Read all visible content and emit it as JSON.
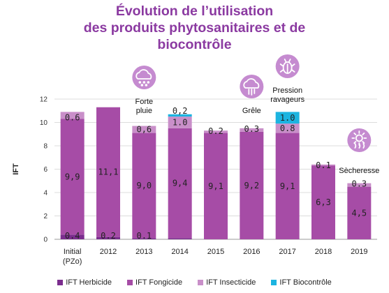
{
  "title_lines": [
    "Évolution de l’utilisation",
    "des produits phytosanitaires et de",
    "biocontrôle"
  ],
  "colors": {
    "title": "#8B3AA1",
    "herbicide": "#7B2D8E",
    "fongicide": "#A64CA6",
    "insecticide": "#C98FC9",
    "biocontrole": "#1CB4E0",
    "icon_circle": "#C58BD0"
  },
  "chart_data": {
    "type": "bar",
    "stacked": true,
    "ylabel": "IFT",
    "ylim": [
      0,
      12
    ],
    "yticks": [
      "0",
      "2",
      "4",
      "6",
      "8",
      "10",
      "12"
    ],
    "grid": true,
    "categories": [
      "Initial (PZo)",
      "2012",
      "2013",
      "2014",
      "2015",
      "2016",
      "2017",
      "2018",
      "2019"
    ],
    "series": [
      {
        "name": "IFT Herbicide",
        "values": [
          0.4,
          0.2,
          0.1,
          0.1,
          0,
          0,
          0,
          0,
          0
        ],
        "labels": [
          "0.4",
          "0.2",
          "0.1",
          "",
          "",
          "",
          "",
          "",
          ""
        ]
      },
      {
        "name": "IFT Fongicide",
        "values": [
          9.9,
          11.1,
          9.0,
          9.4,
          9.1,
          9.2,
          9.1,
          6.3,
          4.5
        ],
        "labels": [
          "9,9",
          "11,1",
          "9,0",
          "9,4",
          "9,1",
          "9,2",
          "9,1",
          "6,3",
          "4,5"
        ]
      },
      {
        "name": "IFT Insecticide",
        "values": [
          0.6,
          0,
          0.6,
          1.0,
          0.2,
          0.3,
          0.8,
          0.1,
          0.3
        ],
        "labels": [
          "0.6",
          "",
          "0,6",
          "1.0",
          "0.2",
          "0.3",
          "0.8",
          "0.1",
          "0.3"
        ]
      },
      {
        "name": "IFT Biocontrôle",
        "values": [
          0,
          0,
          0,
          0.2,
          0,
          0,
          1.0,
          0,
          0
        ],
        "labels": [
          "",
          "",
          "",
          "0,2",
          "",
          "",
          "1.0",
          "",
          ""
        ]
      }
    ],
    "label_positions": {
      "0": {
        "1": "mid",
        "2": "top-inside",
        "0": "bottom"
      },
      "1": {
        "1": "mid",
        "0": "bottom"
      }
    },
    "annotations": [
      {
        "category": "2013",
        "icon": "rain-cloud-icon",
        "text": "Forte\npluie"
      },
      {
        "category": "2016",
        "icon": "hail-cloud-icon",
        "text": "Grêle"
      },
      {
        "category": "2017",
        "icon": "bug-icon",
        "text": "Pression\nravageurs"
      },
      {
        "category": "2019",
        "icon": "sun-heat-icon",
        "text": "Sècheresse"
      }
    ],
    "legend": [
      "IFT Herbicide",
      "IFT Fongicide",
      "IFT Insecticide",
      "IFT Biocontrôle"
    ],
    "legend_position": "bottom"
  }
}
